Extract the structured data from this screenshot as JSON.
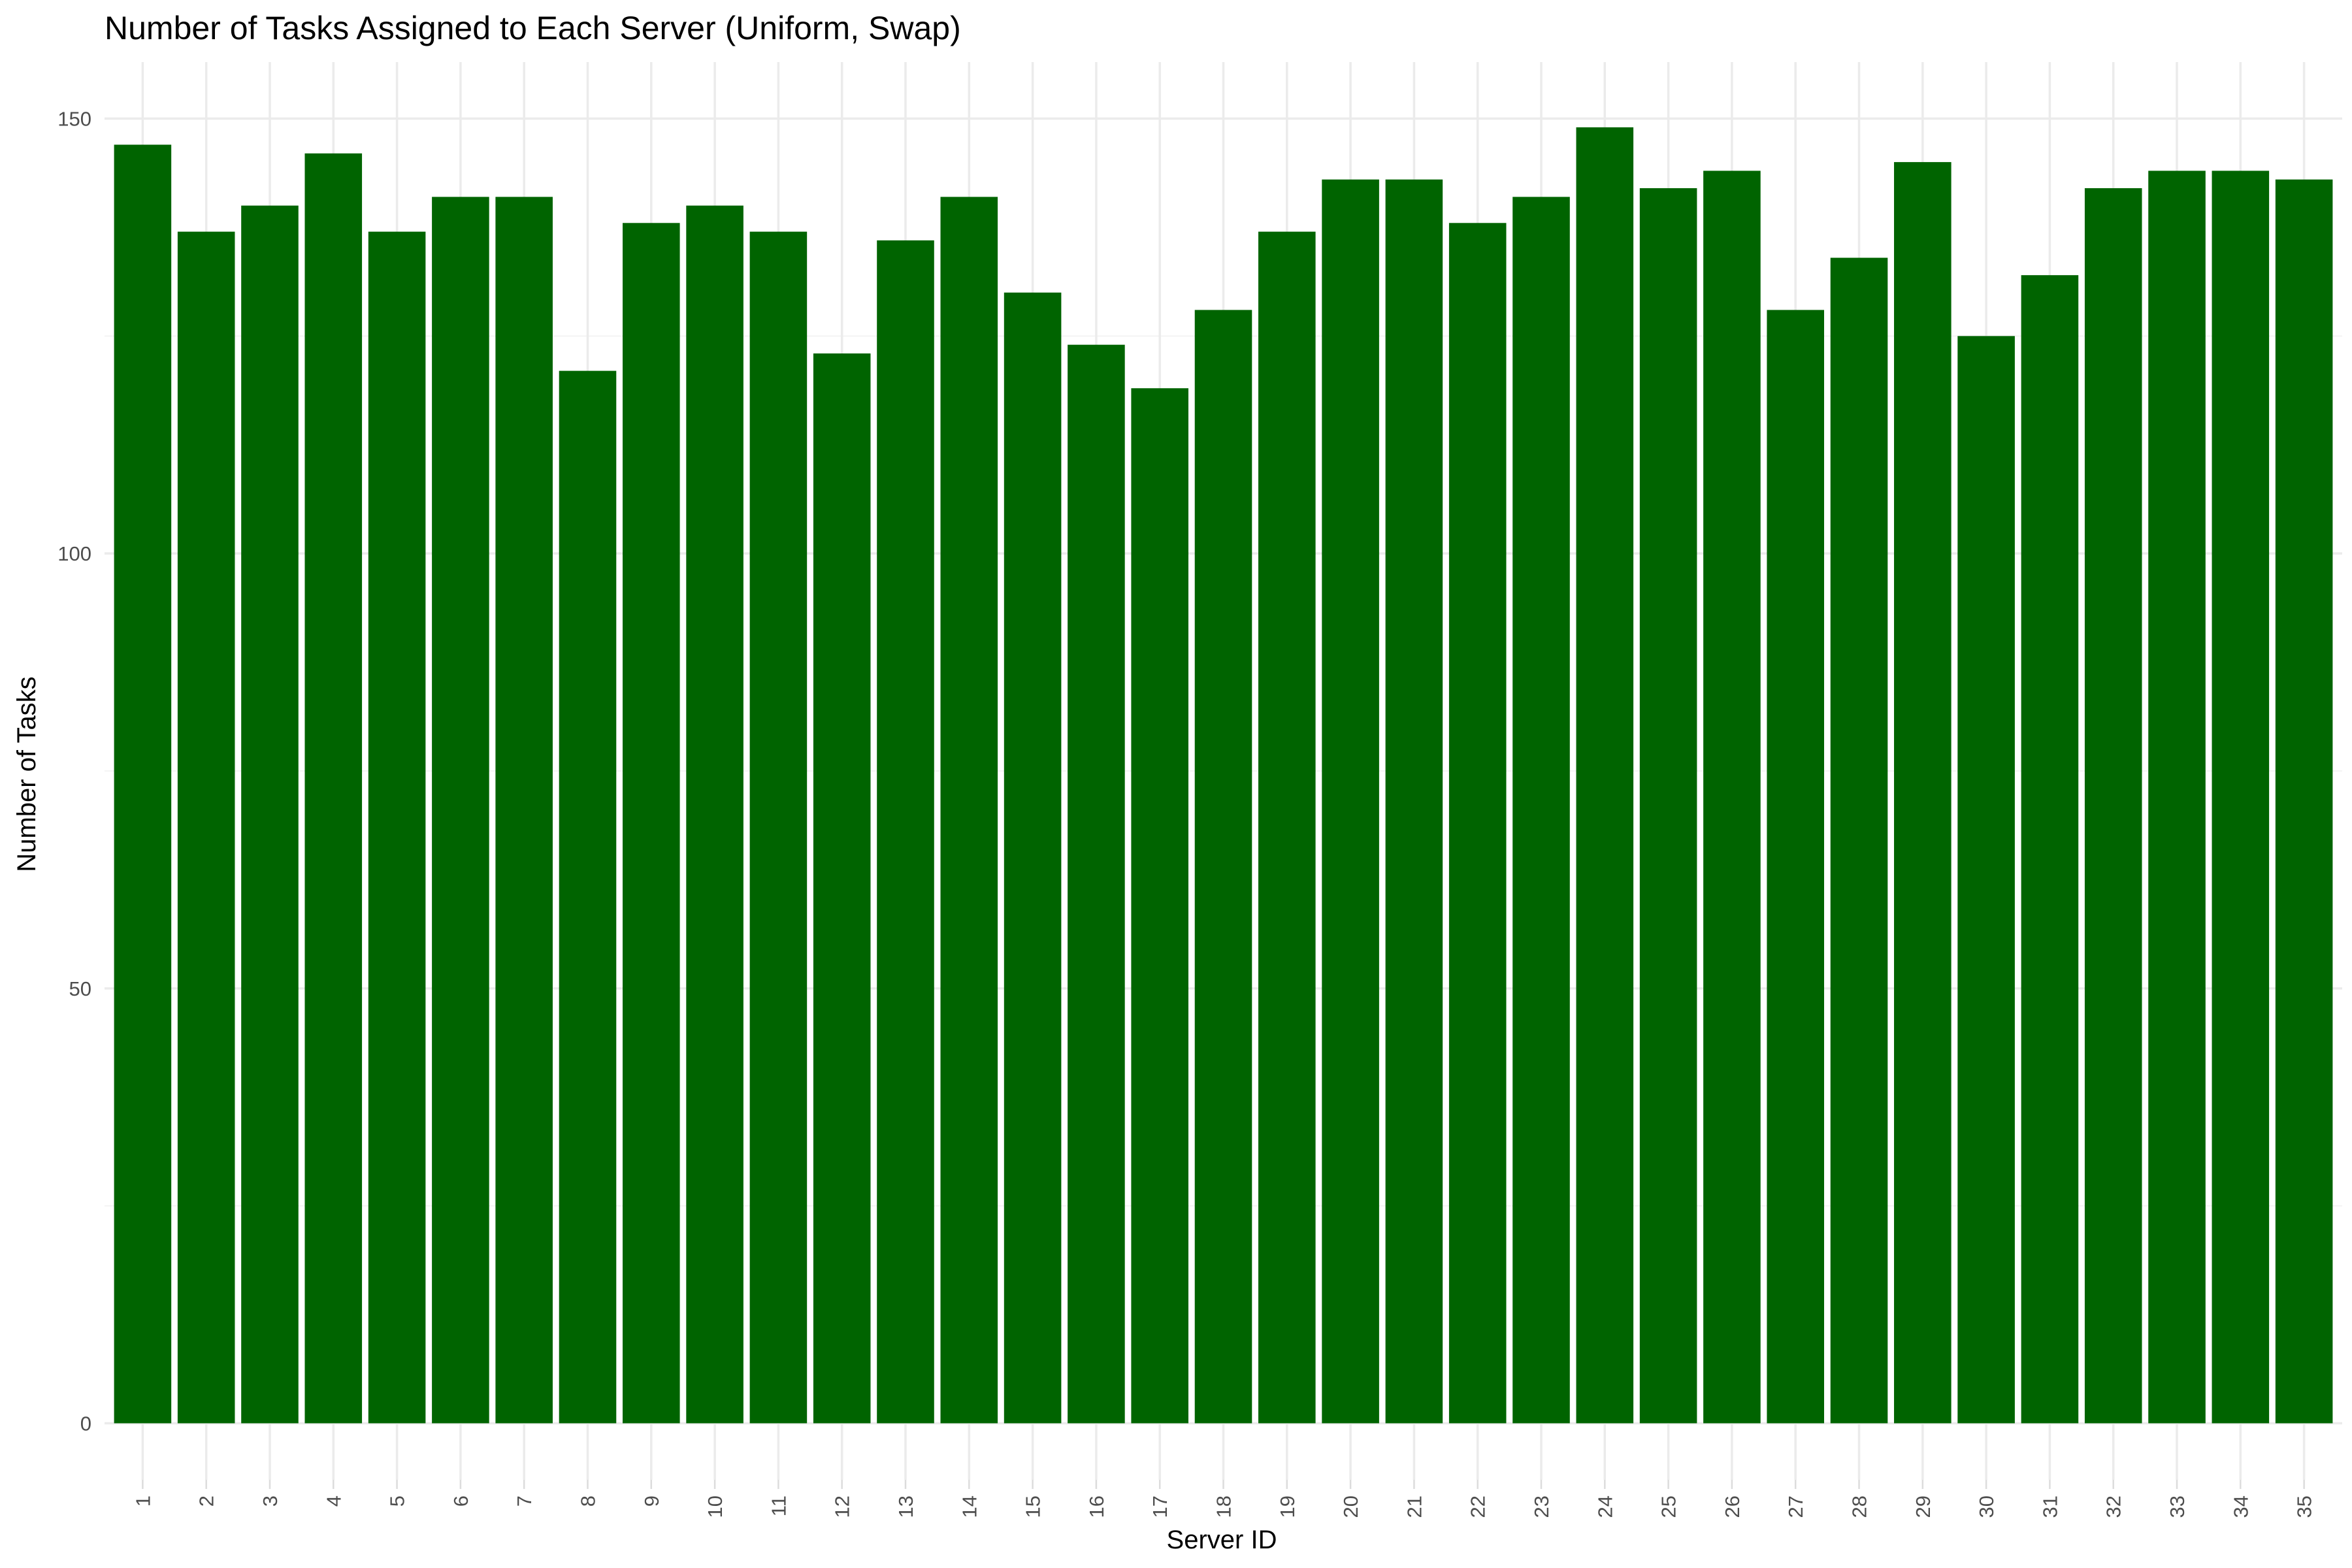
{
  "chart_data": {
    "type": "bar",
    "title": "Number of Tasks Assigned to Each Server (Uniform, Swap)",
    "xlabel": "Server ID",
    "ylabel": "Number of Tasks",
    "categories": [
      "1",
      "2",
      "3",
      "4",
      "5",
      "6",
      "7",
      "8",
      "9",
      "10",
      "11",
      "12",
      "13",
      "14",
      "15",
      "16",
      "17",
      "18",
      "19",
      "20",
      "21",
      "22",
      "23",
      "24",
      "25",
      "26",
      "27",
      "28",
      "29",
      "30",
      "31",
      "32",
      "33",
      "34",
      "35"
    ],
    "values": [
      147,
      137,
      140,
      146,
      137,
      141,
      141,
      121,
      138,
      140,
      137,
      123,
      136,
      141,
      130,
      124,
      119,
      128,
      137,
      143,
      143,
      138,
      141,
      149,
      142,
      144,
      128,
      134,
      145,
      125,
      132,
      142,
      144,
      144,
      143
    ],
    "ylim": [
      -6.5,
      156.5
    ],
    "yticks": [
      0,
      50,
      100,
      150
    ],
    "ytick_labels": [
      "0",
      "50",
      "100",
      "150"
    ],
    "grid": true,
    "legend": "none",
    "bar_color": "#006400"
  }
}
